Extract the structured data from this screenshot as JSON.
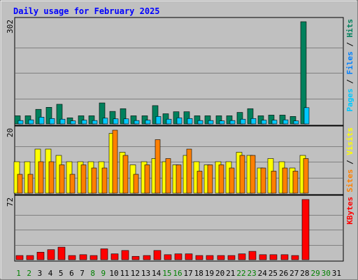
{
  "chart_data": {
    "type": "bar",
    "title": "Daily usage for February 2025",
    "categories": [
      "1",
      "2",
      "3",
      "4",
      "5",
      "6",
      "7",
      "8",
      "9",
      "10",
      "11",
      "12",
      "13",
      "14",
      "15",
      "16",
      "17",
      "18",
      "19",
      "20",
      "21",
      "22",
      "23",
      "24",
      "25",
      "26",
      "27",
      "28",
      "29",
      "30",
      "31"
    ],
    "weekend_days": [
      "1",
      "2",
      "8",
      "9",
      "15",
      "16",
      "22",
      "23",
      "29",
      "30"
    ],
    "panels": [
      {
        "id": "hits-panel",
        "max_label": "302",
        "ymax": 302,
        "legend": [
          "Pages",
          "Files",
          "Hits"
        ],
        "legend_colors": [
          "#00c8ff",
          "#0080ff",
          "#00805c"
        ],
        "series": [
          {
            "name": "Hits",
            "color": "#00805c",
            "values": [
              24,
              24,
              43,
              49,
              58,
              18,
              24,
              24,
              62,
              37,
              45,
              24,
              24,
              54,
              30,
              36,
              36,
              24,
              24,
              24,
              24,
              34,
              45,
              24,
              26,
              26,
              22,
              302
            ]
          },
          {
            "name": "Files",
            "color": "#0080ff",
            "values": [
              10,
              12,
              20,
              16,
              14,
              9,
              11,
              10,
              17,
              15,
              15,
              10,
              11,
              22,
              14,
              18,
              16,
              10,
              10,
              9,
              10,
              14,
              16,
              11,
              11,
              12,
              9,
              48
            ]
          },
          {
            "name": "Pages",
            "color": "#00c8ff",
            "values": [
              10,
              12,
              20,
              16,
              14,
              9,
              11,
              10,
              17,
              15,
              15,
              10,
              11,
              22,
              14,
              18,
              16,
              10,
              10,
              9,
              10,
              14,
              16,
              11,
              11,
              12,
              9,
              48
            ]
          }
        ]
      },
      {
        "id": "visits-panel",
        "max_label": "20",
        "ymax": 20,
        "legend": [
          "Sites",
          "Visits"
        ],
        "legend_colors": [
          "#ff8000",
          "#ffff00"
        ],
        "series": [
          {
            "name": "Visits",
            "color": "#ffff00",
            "values": [
              10,
              10,
              14,
              14,
              12,
              10,
              10,
              10,
              10,
              19,
              13,
              9,
              10,
              11,
              10,
              9,
              12,
              10,
              9,
              10,
              10,
              13,
              12,
              8,
              11,
              10,
              8,
              12
            ]
          },
          {
            "name": "Sites",
            "color": "#ff8000",
            "values": [
              6,
              6,
              10,
              10,
              9,
              6,
              9,
              8,
              8,
              20,
              12,
              6,
              9,
              17,
              11,
              9,
              14,
              7,
              9,
              9,
              8,
              12,
              12,
              8,
              7,
              8,
              7,
              11
            ]
          }
        ]
      },
      {
        "id": "kbytes-panel",
        "max_label": "72",
        "ymax": 72,
        "legend": [
          "KBytes"
        ],
        "legend_colors": [
          "#ff0000"
        ],
        "series": [
          {
            "name": "KBytes",
            "color": "#ff0000",
            "values": [
              5,
              5,
              9,
              12,
              15,
              5,
              6,
              5,
              13,
              7,
              11,
              4,
              5,
              11,
              6,
              7,
              7,
              5,
              5,
              5,
              5,
              7,
              10,
              6,
              6,
              6,
              5,
              72
            ]
          }
        ]
      }
    ]
  }
}
